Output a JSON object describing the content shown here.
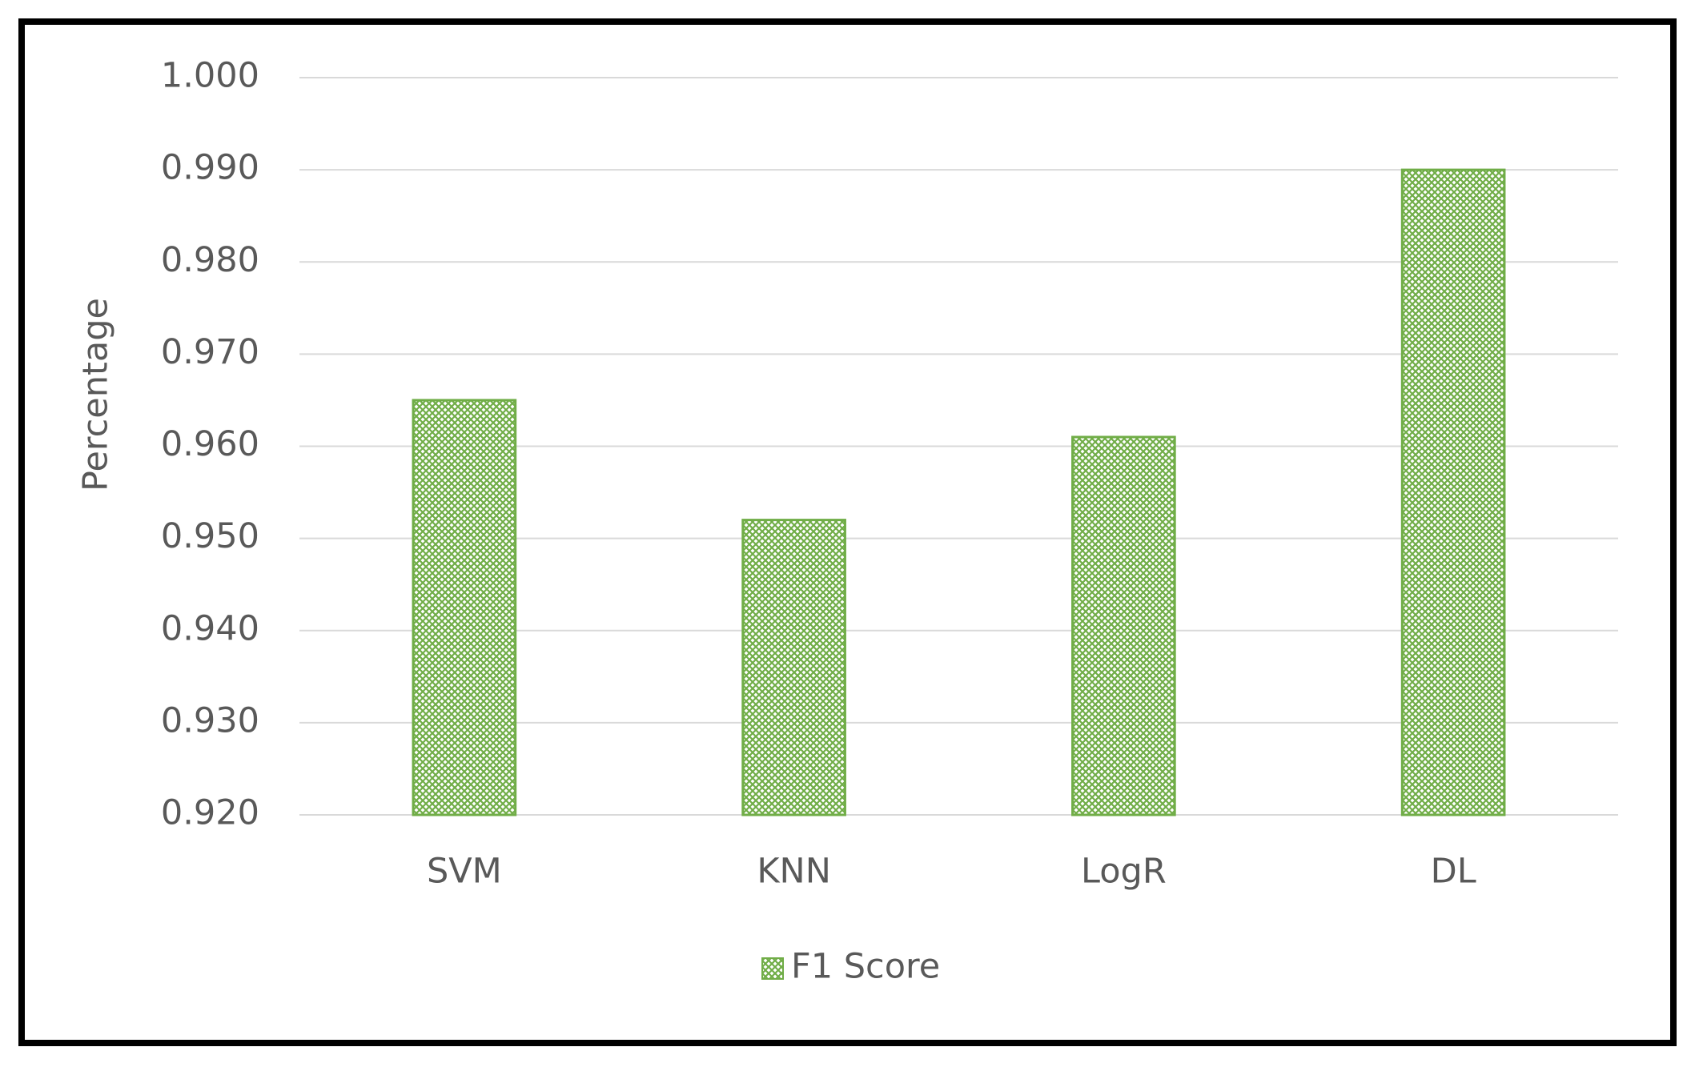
{
  "chart_data": {
    "type": "bar",
    "y_label": "Percentage",
    "categories": [
      "SVM",
      "KNN",
      "LogR",
      "DL"
    ],
    "series": [
      {
        "name": "F1 Score",
        "color": "#70ad47",
        "values": [
          0.965,
          0.952,
          0.961,
          0.99
        ]
      }
    ],
    "ylim": [
      0.92,
      1.0
    ],
    "yticks": [
      {
        "value": 0.92,
        "label": "0.920"
      },
      {
        "value": 0.93,
        "label": "0.930"
      },
      {
        "value": 0.94,
        "label": "0.940"
      },
      {
        "value": 0.95,
        "label": "0.950"
      },
      {
        "value": 0.96,
        "label": "0.960"
      },
      {
        "value": 0.97,
        "label": "0.970"
      },
      {
        "value": 0.98,
        "label": "0.980"
      },
      {
        "value": 0.99,
        "label": "0.990"
      },
      {
        "value": 1.0,
        "label": "1.000"
      }
    ],
    "grid": true,
    "legend": "bottom"
  }
}
